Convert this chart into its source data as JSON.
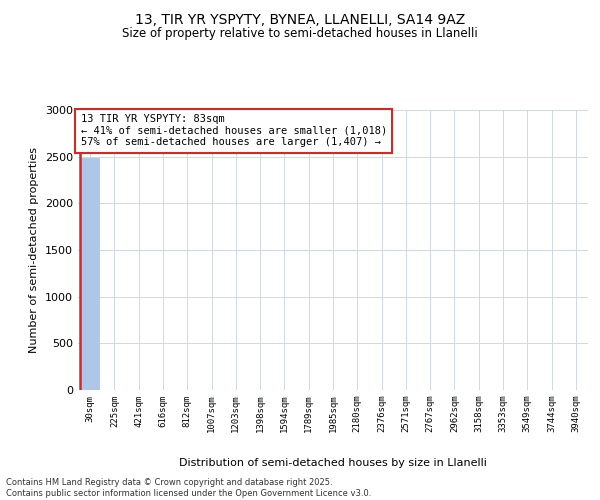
{
  "title": "13, TIR YR YSPYTY, BYNEA, LLANELLI, SA14 9AZ",
  "subtitle": "Size of property relative to semi-detached houses in Llanelli",
  "xlabel": "Distribution of semi-detached houses by size in Llanelli",
  "ylabel": "Number of semi-detached properties",
  "annotation_title": "13 TIR YR YSPYTY: 83sqm",
  "annotation_line1": "← 41% of semi-detached houses are smaller (1,018)",
  "annotation_line2": "57% of semi-detached houses are larger (1,407) →",
  "footer_line1": "Contains HM Land Registry data © Crown copyright and database right 2025.",
  "footer_line2": "Contains public sector information licensed under the Open Government Licence v3.0.",
  "categories": [
    "30sqm",
    "225sqm",
    "421sqm",
    "616sqm",
    "812sqm",
    "1007sqm",
    "1203sqm",
    "1398sqm",
    "1594sqm",
    "1789sqm",
    "1985sqm",
    "2180sqm",
    "2376sqm",
    "2571sqm",
    "2767sqm",
    "2962sqm",
    "3158sqm",
    "3353sqm",
    "3549sqm",
    "3744sqm",
    "3940sqm"
  ],
  "values": [
    2490,
    0,
    0,
    0,
    0,
    0,
    0,
    0,
    0,
    0,
    0,
    0,
    0,
    0,
    0,
    0,
    0,
    0,
    0,
    0,
    0
  ],
  "bar_color": "#aec6e8",
  "highlight_color": "#d62728",
  "annotation_box_color": "#d62728",
  "grid_color": "#d0d8e4",
  "background_color": "#ffffff",
  "ylim": [
    0,
    3000
  ],
  "yticks": [
    0,
    500,
    1000,
    1500,
    2000,
    2500,
    3000
  ]
}
